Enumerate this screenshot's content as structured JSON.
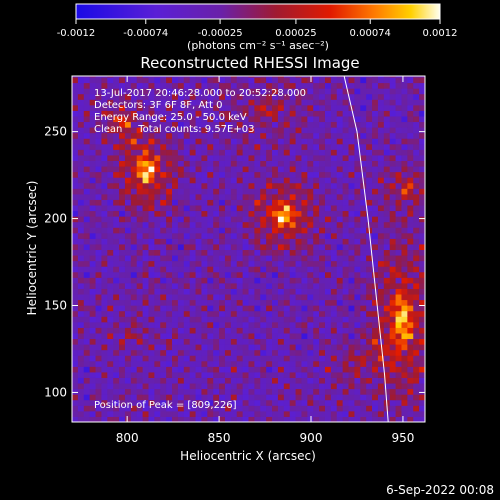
{
  "chart_data": {
    "type": "heatmap",
    "title": "Reconstructed RHESSI Image",
    "xlabel": "Heliocentric X (arcsec)",
    "ylabel": "Heliocentric Y (arcsec)",
    "xlim": [
      770,
      962
    ],
    "ylim": [
      83,
      282
    ],
    "x_ticks": [
      800,
      850,
      900,
      950
    ],
    "y_ticks": [
      100,
      150,
      200,
      250
    ],
    "colorbar": {
      "range": [
        -0.0012,
        0.0012
      ],
      "tick_values": [
        -0.0012,
        -0.00074,
        -0.00025,
        0.00025,
        0.00074,
        0.0012
      ],
      "tick_labels": [
        "-0.0012",
        "-0.00074",
        "-0.00025",
        "0.00025",
        "0.00074",
        "0.0012"
      ],
      "units": "(photons cm⁻² s⁻¹ asec⁻²)"
    },
    "annotations": [
      "13-Jul-2017 20:46:28.000 to 20:52:28.000",
      "Detectors: 3F 6F 8F, Att 0",
      "Energy Range: 25.0 - 50.0 keV",
      "Clean     Total counts: 9.57E+03"
    ],
    "peak_label": "Position of Peak = [809,226]",
    "peak": [
      809,
      226
    ],
    "limb_curve": [
      [
        918,
        282
      ],
      [
        925,
        250
      ],
      [
        931,
        200
      ],
      [
        936,
        150
      ],
      [
        940,
        110
      ],
      [
        942,
        83
      ]
    ],
    "sources": [
      {
        "x": 809,
        "y": 226,
        "sx": 9,
        "sy": 12,
        "amp": 1.0
      },
      {
        "x": 796,
        "y": 254,
        "sx": 6,
        "sy": 7,
        "amp": 0.65
      },
      {
        "x": 883,
        "y": 200,
        "sx": 10,
        "sy": 11,
        "amp": 0.95
      },
      {
        "x": 948,
        "y": 140,
        "sx": 9,
        "sy": 24,
        "amp": 0.95
      },
      {
        "x": 950,
        "y": 215,
        "sx": 8,
        "sy": 10,
        "amp": 0.5
      },
      {
        "x": 875,
        "y": 262,
        "sx": 14,
        "sy": 11,
        "amp": 0.35
      },
      {
        "x": 925,
        "y": 115,
        "sx": 10,
        "sy": 10,
        "amp": 0.3
      },
      {
        "x": 800,
        "y": 130,
        "sx": 7,
        "sy": 6,
        "amp": 0.25
      }
    ]
  },
  "footer": {
    "date": "6-Sep-2022 00:08"
  }
}
